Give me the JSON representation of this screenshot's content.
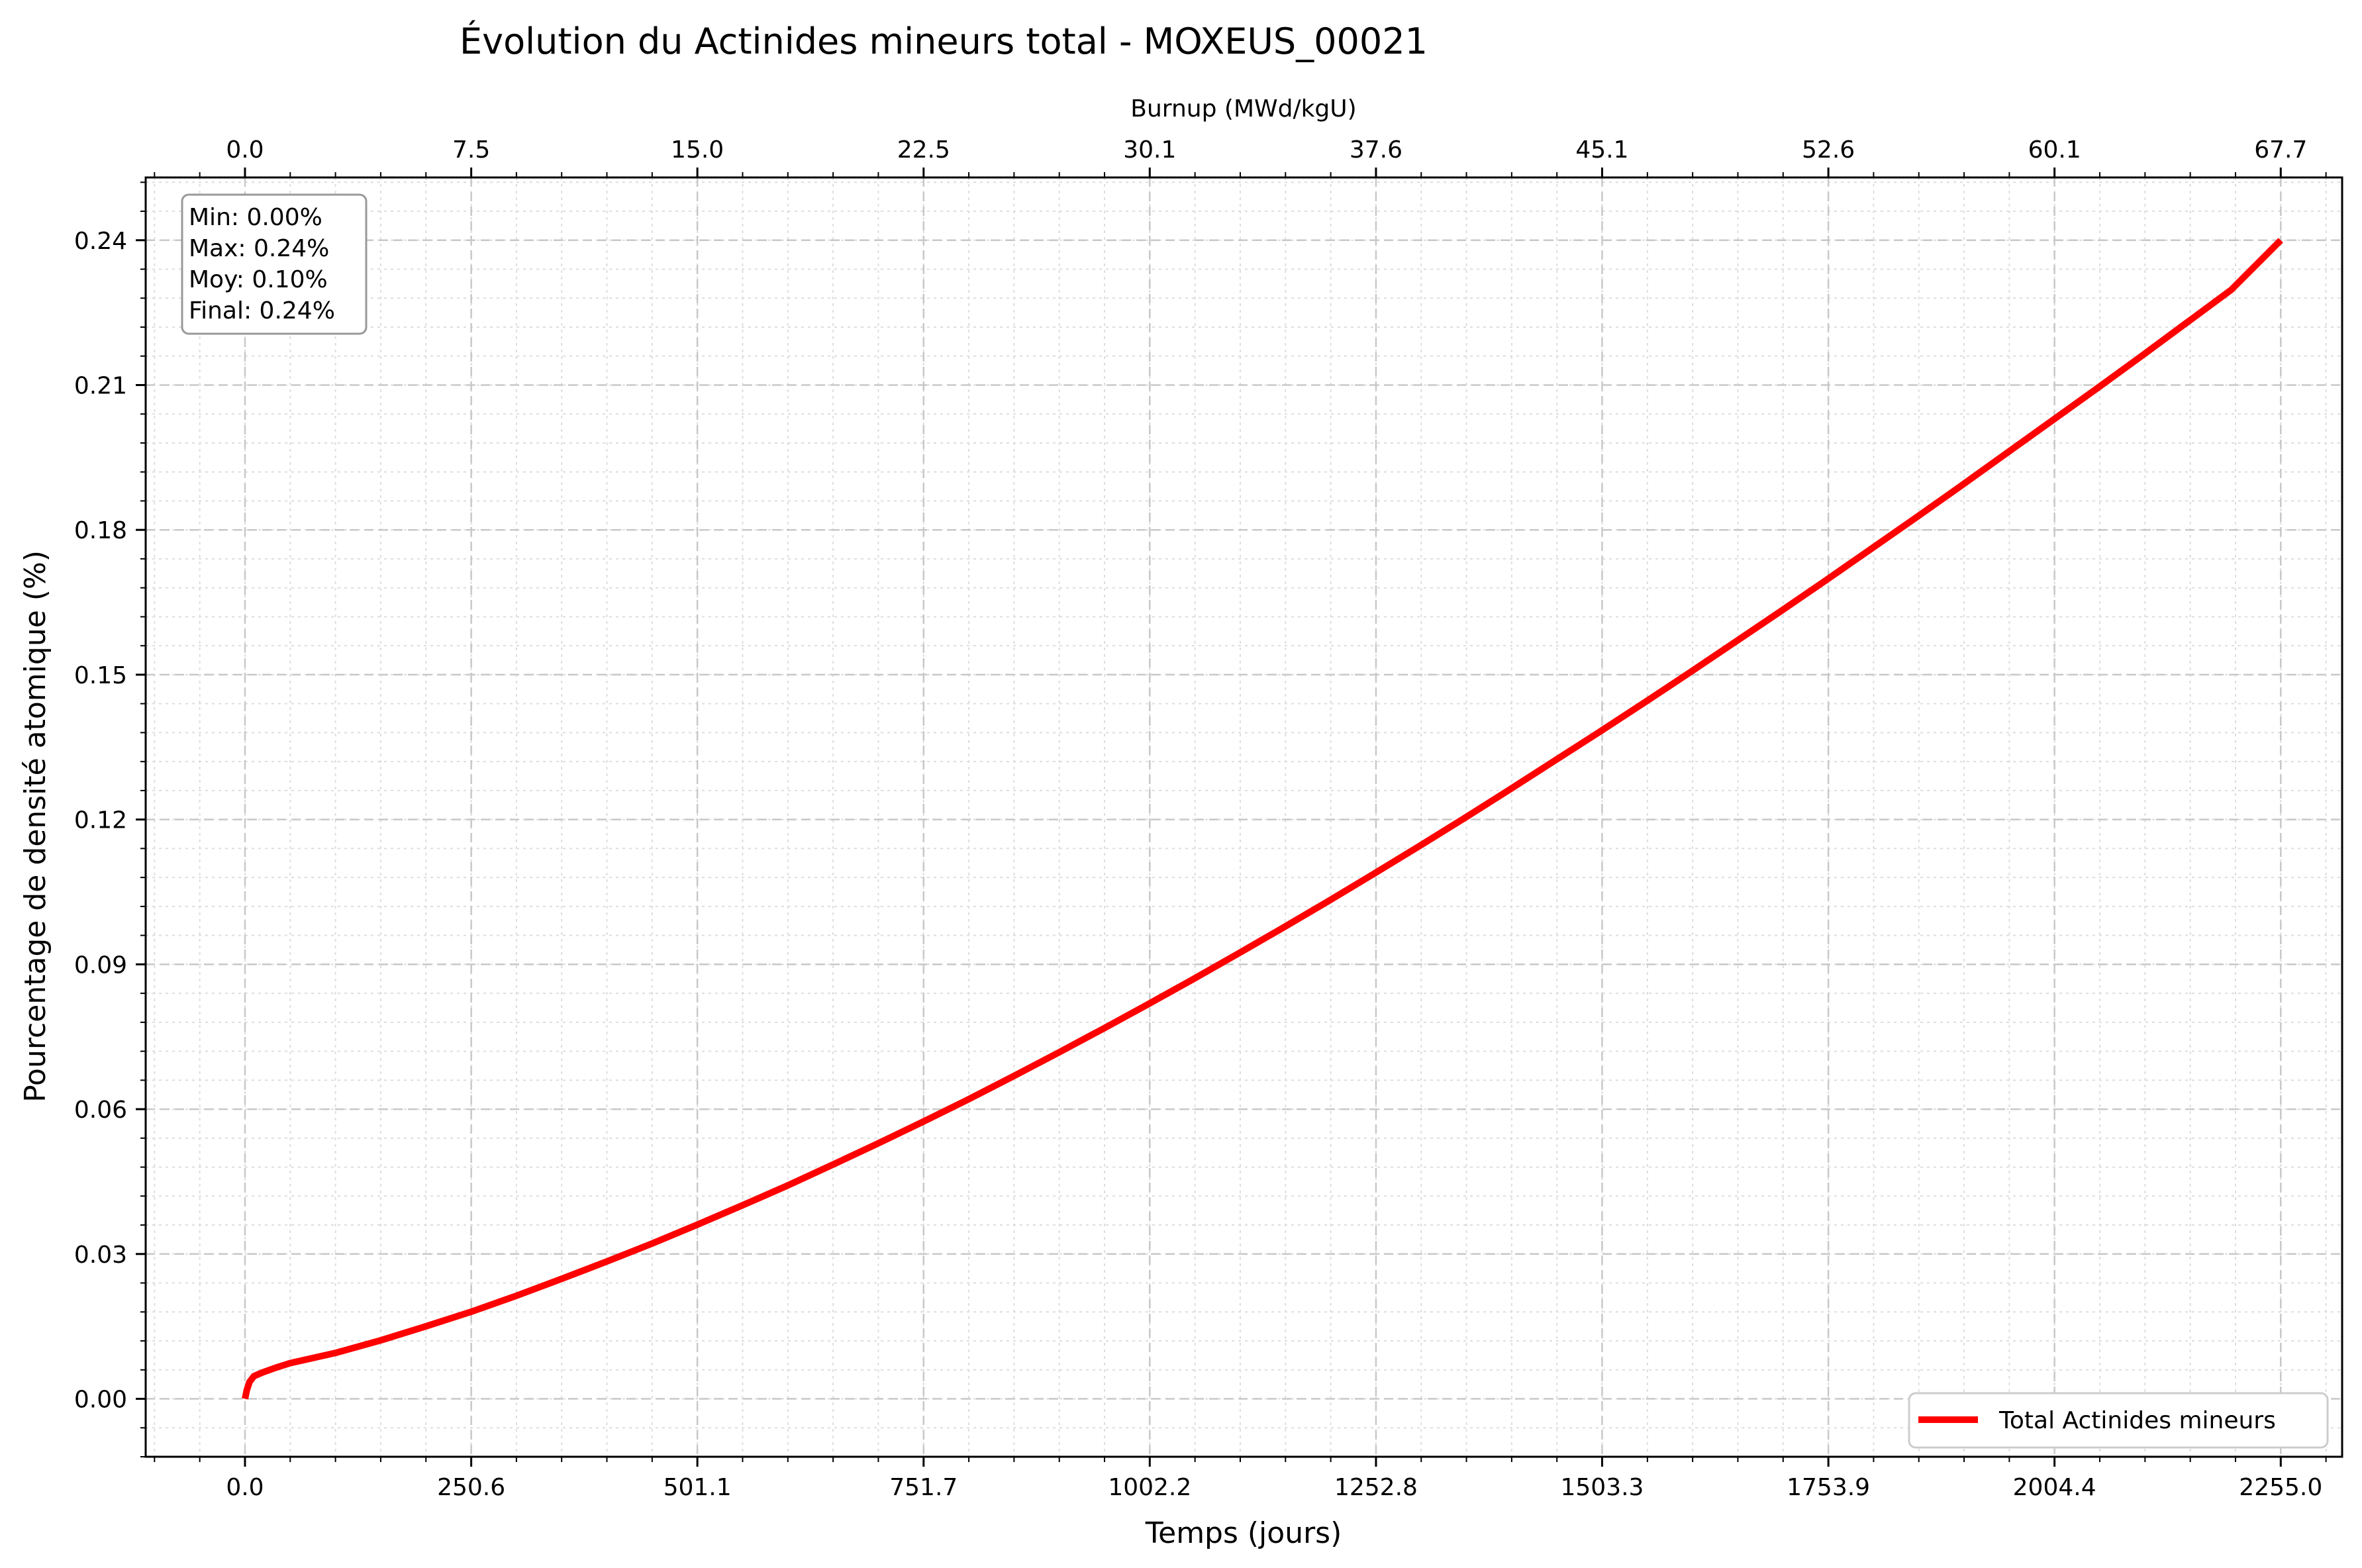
{
  "chart_data": {
    "type": "line",
    "title": "Évolution du Actinides mineurs total - MOXEUS_00021",
    "xlabel": "Temps (jours)",
    "ylabel": "Pourcentage de densité atomique (%)",
    "top_xlabel": "Burnup (MWd/kgU)",
    "xlim": [
      -110,
      2323
    ],
    "ylim": [
      -0.012,
      0.253
    ],
    "x_ticks": [
      0.0,
      250.6,
      501.1,
      751.7,
      1002.2,
      1252.8,
      1503.3,
      1753.9,
      2004.4,
      2255.0
    ],
    "x_tick_labels": [
      "0.0",
      "250.6",
      "501.1",
      "751.7",
      "1002.2",
      "1252.8",
      "1503.3",
      "1753.9",
      "2004.4",
      "2255.0"
    ],
    "top_tick_labels": [
      "0.0",
      "7.5",
      "15.0",
      "22.5",
      "30.1",
      "37.6",
      "45.1",
      "52.6",
      "60.1",
      "67.7"
    ],
    "y_ticks": [
      0.0,
      0.03,
      0.06,
      0.09,
      0.12,
      0.15,
      0.18,
      0.21,
      0.24
    ],
    "y_tick_labels": [
      "0.00",
      "0.03",
      "0.06",
      "0.09",
      "0.12",
      "0.15",
      "0.18",
      "0.21",
      "0.24"
    ],
    "grid": true,
    "legend_position": "bottom-right",
    "series": [
      {
        "name": "Total Actinides mineurs",
        "color": "#ff0000",
        "x": [
          0,
          2,
          5,
          10,
          20,
          35,
          50,
          100,
          150,
          200,
          250,
          300,
          350,
          400,
          450,
          500,
          550,
          600,
          650,
          700,
          750,
          800,
          850,
          900,
          950,
          1000,
          1050,
          1100,
          1150,
          1200,
          1250,
          1300,
          1350,
          1400,
          1450,
          1500,
          1550,
          1600,
          1650,
          1700,
          1750,
          1800,
          1850,
          1900,
          1950,
          2000,
          2050,
          2100,
          2150,
          2200,
          2255
        ],
        "y": [
          0.0,
          0.0018,
          0.0035,
          0.0047,
          0.0055,
          0.0065,
          0.0074,
          0.0095,
          0.0121,
          0.015,
          0.018,
          0.0213,
          0.0248,
          0.0284,
          0.0321,
          0.036,
          0.04,
          0.0441,
          0.0484,
          0.0528,
          0.0573,
          0.0619,
          0.0667,
          0.0716,
          0.0766,
          0.0817,
          0.0869,
          0.0922,
          0.0976,
          0.1031,
          0.1087,
          0.1144,
          0.1202,
          0.1261,
          0.1321,
          0.1381,
          0.1442,
          0.1504,
          0.1567,
          0.163,
          0.1694,
          0.1759,
          0.1824,
          0.189,
          0.1957,
          0.2024,
          0.2091,
          0.2159,
          0.2228,
          0.2297,
          0.24
        ]
      }
    ],
    "stats_box": {
      "lines": [
        "Min: 0.00%",
        "Max: 0.24%",
        "Moy: 0.10%",
        "Final: 0.24%"
      ],
      "position": "top-left"
    }
  }
}
